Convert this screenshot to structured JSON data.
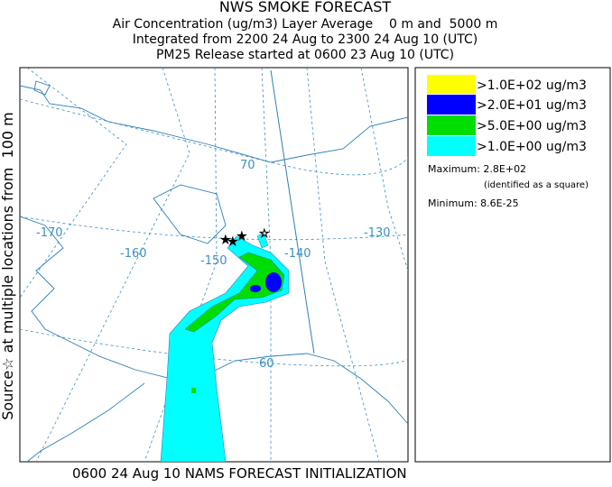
{
  "header": {
    "title": "NWS SMOKE FORECAST",
    "lines": [
      "Air Concentration (ug/m3) Layer Average    0 m and  5000 m",
      "Integrated from 2200 24 Aug to 2300 24 Aug 10 (UTC)",
      "PM25 Release started at 0600 23 Aug 10 (UTC)"
    ]
  },
  "side_label": "Source☆ at multiple locations from  100 m",
  "footer": "0600 24 Aug 10 NAMS FORECAST INITIALIZATION",
  "legend": {
    "items": [
      {
        "label": ">1.0E+02 ug/m3",
        "color": "#ffff00"
      },
      {
        "label": ">2.0E+01 ug/m3",
        "color": "#0000ff"
      },
      {
        "label": ">5.0E+00 ug/m3",
        "color": "#00dd00"
      },
      {
        "label": ">1.0E+00 ug/m3",
        "color": "#00ffff"
      }
    ],
    "maximum": "Maximum: 2.8E+02",
    "maximum_note": "(identified as a square)",
    "minimum": "Minimum: 8.6E-25"
  },
  "map": {
    "graticule_labels": [
      "-170",
      "-160",
      "-150",
      "-140",
      "-130",
      "70",
      "60"
    ]
  }
}
